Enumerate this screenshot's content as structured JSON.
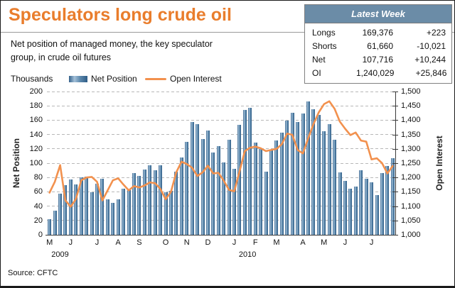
{
  "header": {
    "title": "Speculators long crude oil",
    "subtitle": "Net position of managed money, the key speculator group, in crude oil futures"
  },
  "legend": {
    "units_label": "Thousands",
    "net_position_label": "Net Position",
    "open_interest_label": "Open Interest"
  },
  "latest_week": {
    "title": "Latest Week",
    "rows": [
      {
        "label": "Longs",
        "value": "169,376",
        "change": "+223"
      },
      {
        "label": "Shorts",
        "value": "61,660",
        "change": "-10,021"
      },
      {
        "label": "Net",
        "value": "107,716",
        "change": "+10,244"
      },
      {
        "label": "OI",
        "value": "1,240,029",
        "change": "+25,846"
      }
    ]
  },
  "source": "Source: CFTC",
  "colors": {
    "accent_orange": "#e97d2c",
    "line_orange": "#f2914e",
    "bar_blue_dark": "#2e5c86",
    "bar_blue_light": "#a3c0d8",
    "table_header_bg": "#6b8ca7"
  },
  "chart_data": {
    "type": "bar",
    "title": "Speculators long crude oil",
    "subtitle": "Net position of managed money, the key speculator group, in crude oil futures",
    "legend_position": "top",
    "grid": "dashed-horizontal",
    "left_axis": {
      "title": "Net Position",
      "units": "Thousands",
      "min": 0,
      "max": 200,
      "step": 20
    },
    "right_axis": {
      "title": "Open Interest",
      "min": 1000,
      "max": 1500,
      "step": 50
    },
    "x_ticks": [
      {
        "label": "M",
        "bar": 1
      },
      {
        "label": "J",
        "bar": 5
      },
      {
        "label": "J",
        "bar": 10
      },
      {
        "label": "A",
        "bar": 14
      },
      {
        "label": "S",
        "bar": 18
      },
      {
        "label": "O",
        "bar": 23
      },
      {
        "label": "N",
        "bar": 27
      },
      {
        "label": "D",
        "bar": 31
      },
      {
        "label": "J",
        "bar": 36
      },
      {
        "label": "F",
        "bar": 40
      },
      {
        "label": "M",
        "bar": 44
      },
      {
        "label": "A",
        "bar": 49
      },
      {
        "label": "M",
        "bar": 53
      },
      {
        "label": "J",
        "bar": 57
      },
      {
        "label": "J",
        "bar": 62
      }
    ],
    "year_ticks": [
      {
        "label": "2009",
        "bar": 3
      },
      {
        "label": "2010",
        "bar": 38.5
      }
    ],
    "series": [
      {
        "name": "Net Position",
        "type": "bar",
        "axis": "left",
        "values": [
          22,
          34,
          57,
          69,
          77,
          70,
          80,
          81,
          59,
          71,
          78,
          50,
          45,
          50,
          64,
          62,
          86,
          82,
          91,
          97,
          90,
          97,
          59,
          61,
          88,
          108,
          130,
          157,
          154,
          134,
          146,
          115,
          124,
          101,
          133,
          92,
          153,
          174,
          177,
          129,
          120,
          88,
          118,
          132,
          143,
          159,
          170,
          157,
          169,
          186,
          175,
          167,
          145,
          154,
          133,
          87,
          75,
          64,
          67,
          90,
          78,
          73,
          55,
          86,
          96,
          107
        ]
      },
      {
        "name": "Open Interest",
        "type": "line",
        "axis": "right",
        "values": [
          1147,
          1185,
          1243,
          1120,
          1098,
          1125,
          1190,
          1200,
          1202,
          1185,
          1120,
          1155,
          1190,
          1197,
          1175,
          1155,
          1170,
          1165,
          1172,
          1183,
          1180,
          1160,
          1124,
          1150,
          1218,
          1255,
          1247,
          1234,
          1205,
          1218,
          1241,
          1214,
          1216,
          1189,
          1157,
          1152,
          1222,
          1292,
          1304,
          1308,
          1302,
          1292,
          1296,
          1300,
          1316,
          1353,
          1349,
          1296,
          1284,
          1337,
          1386,
          1427,
          1456,
          1466,
          1440,
          1395,
          1370,
          1348,
          1357,
          1329,
          1325,
          1263,
          1267,
          1250,
          1214,
          1240
        ]
      }
    ]
  }
}
